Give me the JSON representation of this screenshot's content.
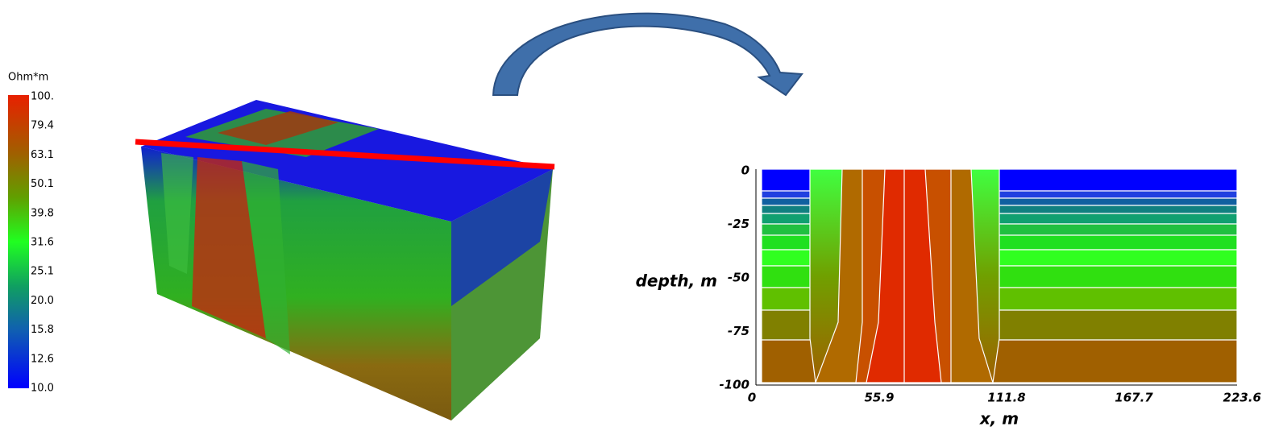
{
  "colorbar": {
    "title": "Ohm*m",
    "labels": [
      "100.",
      "79.4",
      "63.1",
      "50.1",
      "39.8",
      "31.6",
      "25.1",
      "20.0",
      "15.8",
      "12.6",
      "10.0"
    ]
  },
  "section": {
    "y_label": "depth, m",
    "x_label": "x, m",
    "y_ticks": [
      "0",
      "-25",
      "-50",
      "-75",
      "-100"
    ],
    "x_ticks": [
      "0",
      "55.9",
      "111.8",
      "167.7",
      "223.6"
    ]
  }
}
